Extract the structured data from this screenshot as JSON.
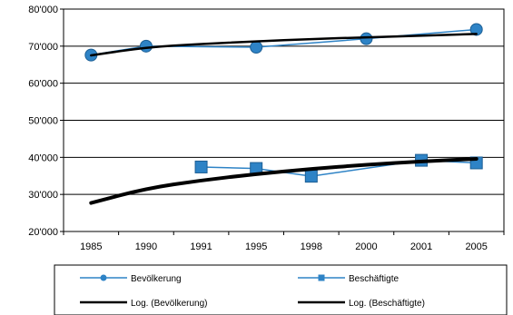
{
  "chart_data": {
    "type": "line",
    "categories": [
      "1985",
      "1990",
      "1991",
      "1995",
      "1998",
      "2000",
      "2001",
      "2005"
    ],
    "ylim": [
      20000,
      80000
    ],
    "yticks": [
      20000,
      30000,
      40000,
      50000,
      60000,
      70000,
      80000
    ],
    "ytick_labels": [
      "20'000",
      "30'000",
      "40'000",
      "50'000",
      "60'000",
      "70'000",
      "80'000"
    ],
    "grid": "horizontal",
    "legend_position": "bottom",
    "series": [
      {
        "name": "Bevölkerung",
        "color": "#2E83C6",
        "marker": "circle",
        "values": [
          67600,
          70000,
          null,
          69700,
          null,
          72000,
          null,
          74500
        ]
      },
      {
        "name": "Beschäftigte",
        "color": "#2E83C6",
        "marker": "square",
        "values": [
          null,
          null,
          37400,
          37000,
          34900,
          null,
          39200,
          38500
        ]
      },
      {
        "name": "Log. (Bevölkerung)",
        "color": "#000000",
        "type": "trendline-log",
        "values": [
          67500,
          69700,
          70600,
          71300,
          71900,
          72400,
          72800,
          73300
        ]
      },
      {
        "name": "Log. (Beschäftigte)",
        "color": "#000000",
        "type": "trendline-log",
        "values": [
          27700,
          31600,
          33800,
          35500,
          36900,
          38000,
          38900,
          39600
        ]
      }
    ]
  }
}
